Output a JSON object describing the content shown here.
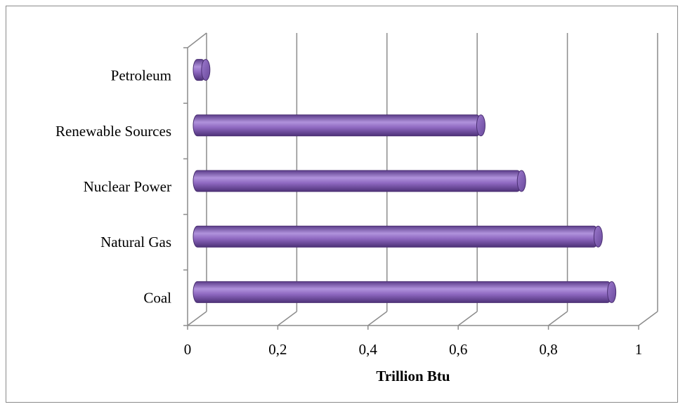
{
  "chart_data": {
    "type": "bar",
    "orientation": "horizontal",
    "style": "3d-cylinder",
    "categories": [
      "Coal",
      "Natural Gas",
      "Nuclear Power",
      "Renewable Sources",
      "Petroleum"
    ],
    "values": [
      0.92,
      0.89,
      0.72,
      0.63,
      0.02
    ],
    "xlabel": "Trillion Btu",
    "xlim": [
      0,
      1
    ],
    "xticks": [
      "0",
      "0,2",
      "0,4",
      "0,6",
      "0,8",
      "1"
    ],
    "grid": "vertical",
    "legend": "none",
    "colors": {
      "bar": "#8e68c0",
      "bar_dark": "#5c3d8a",
      "bar_light": "#b092dc",
      "grid": "#8c8c8c"
    }
  }
}
